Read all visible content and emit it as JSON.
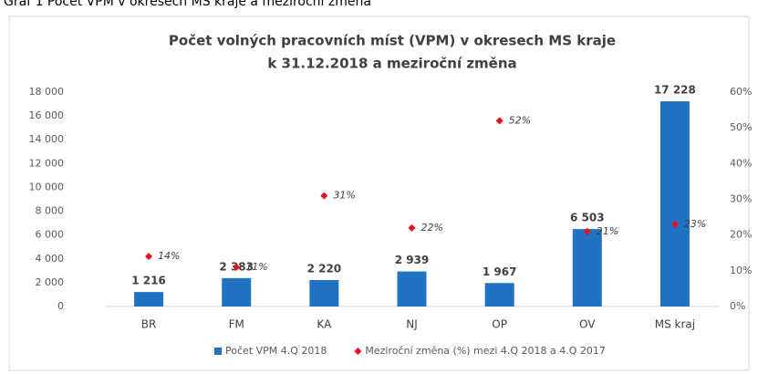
{
  "caption": "Graf 1     Počet VPM v okresech MS kraje a meziroční změna",
  "chart_data": {
    "type": "bar",
    "title": [
      "Počet volných pracovních míst (VPM) v okresech MS kraje",
      "k 31.12.2018 a meziroční změna"
    ],
    "categories": [
      "BR",
      "FM",
      "KA",
      "NJ",
      "OP",
      "OV",
      "MS kraj"
    ],
    "series": [
      {
        "name": "Počet VPM 4.Q 2018",
        "type": "bar",
        "color": "#1f73c2",
        "values": [
          1216,
          2383,
          2220,
          2939,
          1967,
          6503,
          17228
        ],
        "value_labels": [
          "1 216",
          "2 383",
          "2 220",
          "2 939",
          "1 967",
          "6 503",
          "17 228"
        ]
      },
      {
        "name": "Meziroční změna (%) mezi 4.Q 2018 a 4.Q 2017",
        "type": "scatter",
        "axis": "y2",
        "color": "#e8101a",
        "values": [
          14,
          11,
          31,
          22,
          52,
          21,
          23
        ],
        "value_labels": [
          "14%",
          "11%",
          "31%",
          "22%",
          "52%",
          "21%",
          "23%"
        ]
      }
    ],
    "ylim": [
      0,
      18000
    ],
    "yticks": [
      0,
      {
        "value": 2000,
        "label": "2 000"
      },
      {
        "value": 4000,
        "label": "4 000"
      },
      {
        "value": 6000,
        "label": "6 000"
      },
      {
        "value": 8000,
        "label": "8 000"
      },
      {
        "value": 10000,
        "label": "10 000"
      },
      {
        "value": 12000,
        "label": "12 000"
      },
      {
        "value": 14000,
        "label": "14 000"
      },
      {
        "value": 16000,
        "label": "16 000"
      },
      {
        "value": 18000,
        "label": "18 000"
      }
    ],
    "y2lim": [
      0,
      60
    ],
    "y2ticks": [
      {
        "value": 0,
        "label": "0%"
      },
      {
        "value": 10,
        "label": "10%"
      },
      {
        "value": 20,
        "label": "20%"
      },
      {
        "value": 30,
        "label": "30%"
      },
      {
        "value": 40,
        "label": "40%"
      },
      {
        "value": 50,
        "label": "50%"
      },
      {
        "value": 60,
        "label": "60%"
      }
    ],
    "grid": false,
    "legend": "bottom"
  }
}
